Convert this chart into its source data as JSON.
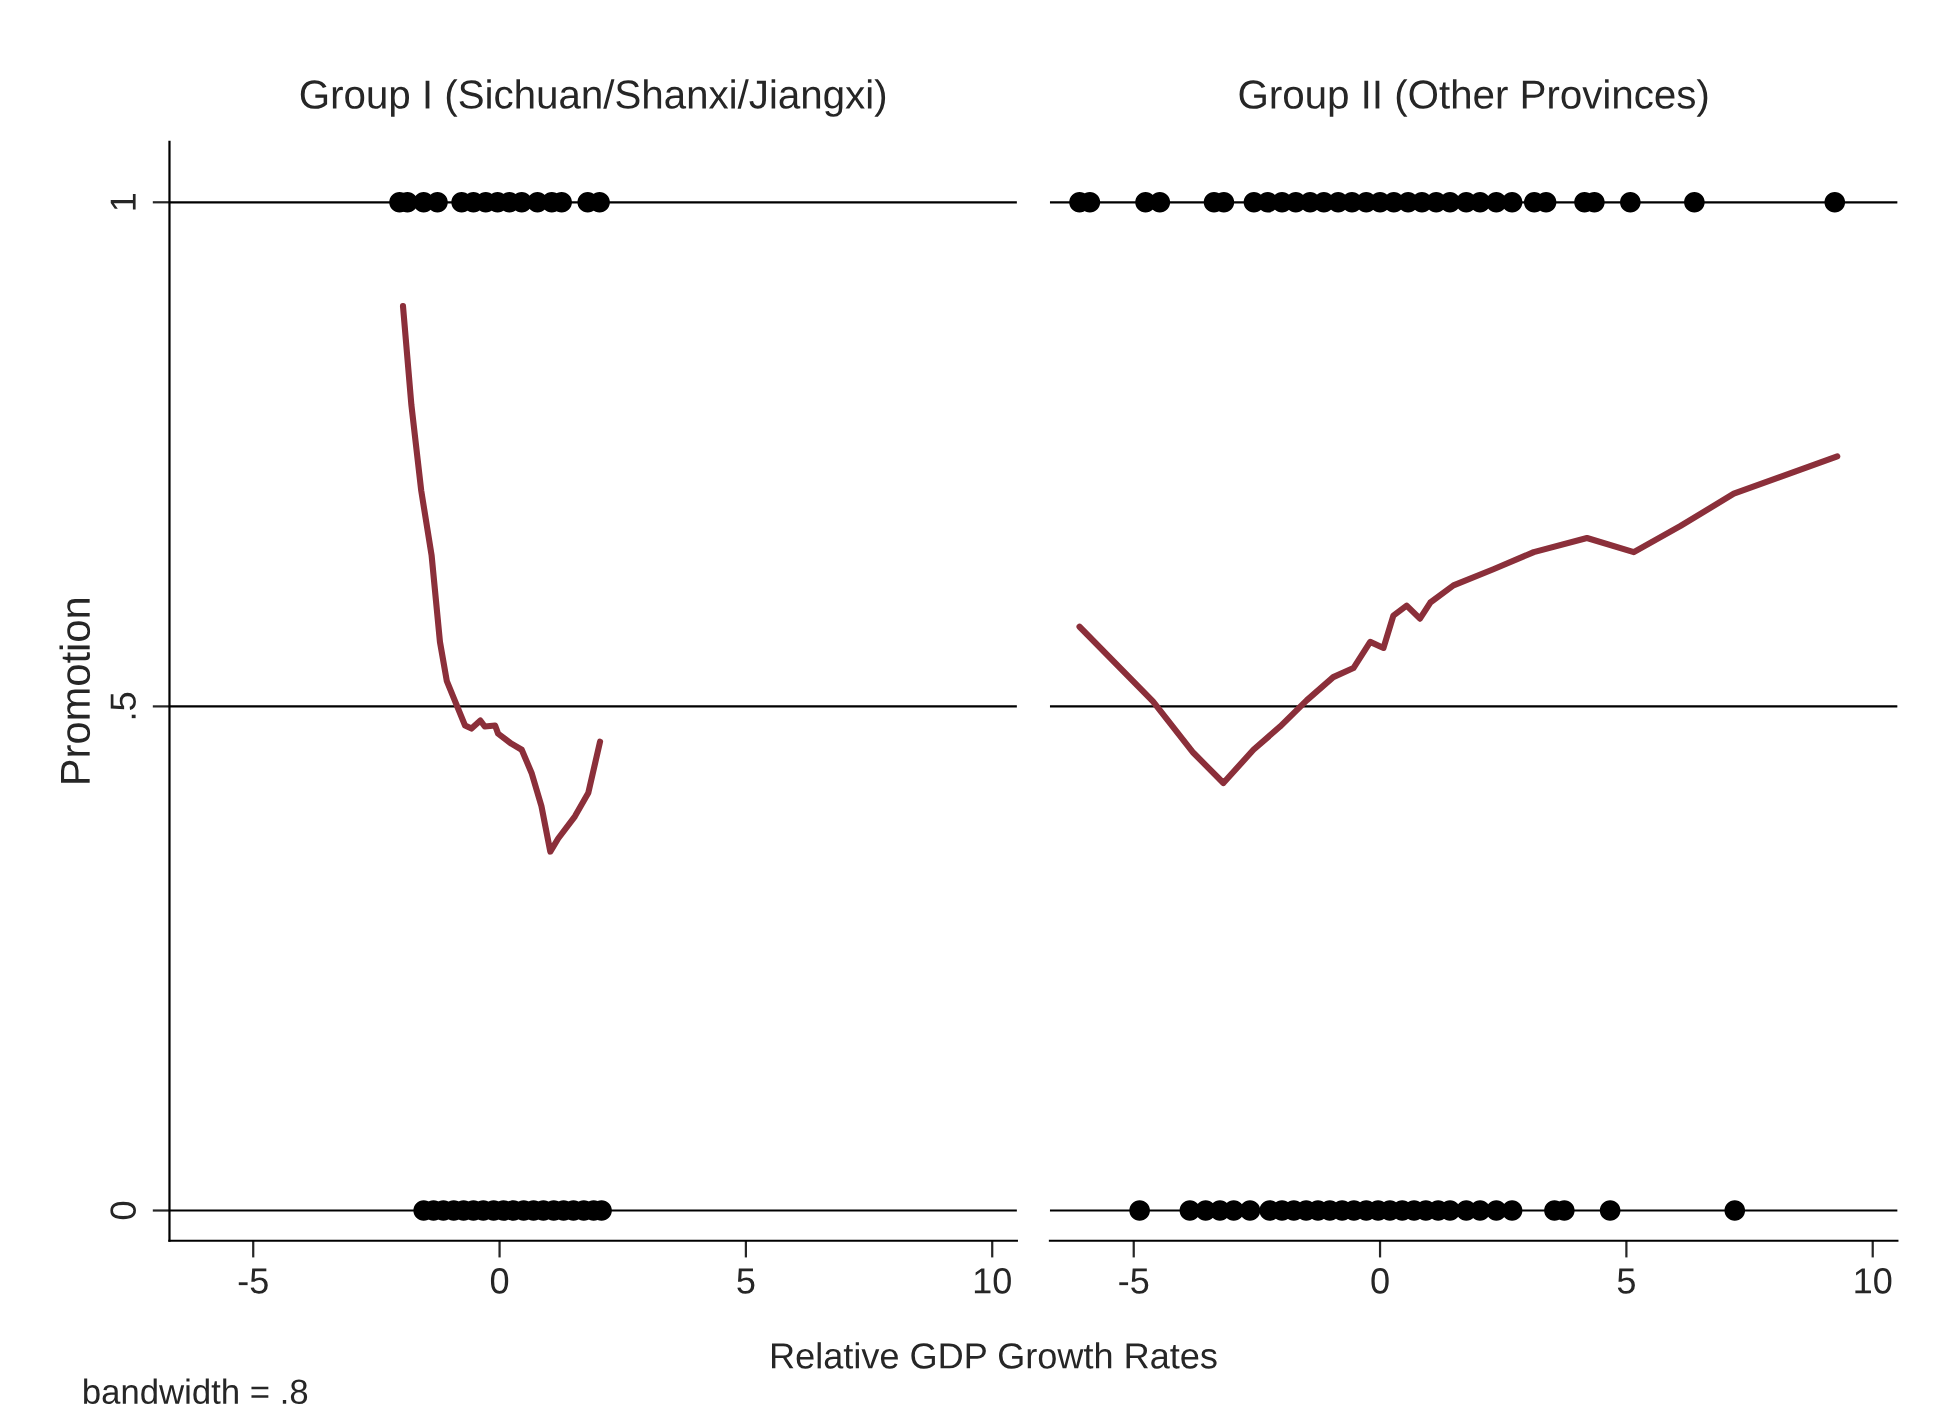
{
  "chart_data": [
    {
      "type": "scatter",
      "title": "Group I (Sichuan/Shanxi/Jiangxi)",
      "ylabel": "Promotion",
      "xlabel": "Relative GDP Growth Rates",
      "annotations": [
        "bandwidth = .8"
      ],
      "xlim": [
        -6.7,
        10.5
      ],
      "xticks": [
        -5,
        0,
        5,
        10
      ],
      "ylim": [
        -0.03,
        1.06
      ],
      "yticks": [
        0,
        {
          "value": 0.5,
          "label": ".5"
        },
        1
      ],
      "grid": "y",
      "series": [
        {
          "marker": "circle",
          "color": "#000000",
          "x": [
            -2.03,
            -1.87,
            -1.54,
            -1.26,
            -0.77,
            -0.53,
            -0.28,
            -0.04,
            0.2,
            0.45,
            0.77,
            1.06,
            1.26,
            1.79,
            2.03
          ],
          "values": [
            1,
            1,
            1,
            1,
            1,
            1,
            1,
            1,
            1,
            1,
            1,
            1,
            1,
            1,
            1
          ]
        },
        {
          "marker": "circle",
          "color": "#000000",
          "x": [
            -1.54,
            -1.34,
            -1.14,
            -0.93,
            -0.73,
            -0.53,
            -0.33,
            -0.12,
            0.08,
            0.28,
            0.49,
            0.69,
            0.89,
            1.1,
            1.3,
            1.5,
            1.71,
            1.91,
            2.07
          ],
          "values": [
            0,
            0,
            0,
            0,
            0,
            0,
            0,
            0,
            0,
            0,
            0,
            0,
            0,
            0,
            0,
            0,
            0,
            0,
            0
          ]
        },
        {
          "type": "line",
          "line_style": "solid",
          "color": "#8b2f3a",
          "x": [
            -1.96,
            -1.79,
            -1.59,
            -1.38,
            -1.21,
            -1.07,
            -0.91,
            -0.7,
            -0.57,
            -0.39,
            -0.3,
            -0.09,
            -0.03,
            0.24,
            0.45,
            0.65,
            0.85,
            1.03,
            1.19,
            1.53,
            1.8,
            2.04
          ],
          "values": [
            0.897,
            0.799,
            0.714,
            0.65,
            0.564,
            0.525,
            0.506,
            0.481,
            0.478,
            0.486,
            0.48,
            0.481,
            0.473,
            0.463,
            0.457,
            0.434,
            0.401,
            0.356,
            0.369,
            0.391,
            0.414,
            0.465
          ]
        }
      ]
    },
    {
      "type": "scatter",
      "title": "Group II (Other Provinces)",
      "xlim": [
        -6.7,
        10.5
      ],
      "xticks": [
        -5,
        0,
        5,
        10
      ],
      "yticks": [
        0,
        0.5,
        1
      ],
      "grid": "y",
      "tick_labels": "x",
      "series": [
        {
          "marker": "circle",
          "color": "#000000",
          "x": [
            -6.1,
            -5.89,
            -4.76,
            -4.47,
            -3.37,
            -3.17,
            -2.56,
            -2.28,
            -1.99,
            -1.71,
            -1.42,
            -1.14,
            -0.85,
            -0.57,
            -0.28,
            0,
            0.28,
            0.57,
            0.85,
            1.14,
            1.42,
            1.75,
            2.03,
            2.36,
            2.68,
            3.13,
            3.37,
            4.15,
            4.35,
            5.08,
            6.38,
            9.23
          ],
          "values": [
            1,
            1,
            1,
            1,
            1,
            1,
            1,
            1,
            1,
            1,
            1,
            1,
            1,
            1,
            1,
            1,
            1,
            1,
            1,
            1,
            1,
            1,
            1,
            1,
            1,
            1,
            1,
            1,
            1,
            1,
            1,
            1
          ]
        },
        {
          "marker": "circle",
          "color": "#000000",
          "x": [
            -4.88,
            -3.86,
            -3.54,
            -3.25,
            -2.97,
            -2.64,
            -2.24,
            -1.99,
            -1.75,
            -1.5,
            -1.26,
            -1.02,
            -0.77,
            -0.53,
            -0.28,
            -0.04,
            0.2,
            0.45,
            0.69,
            0.93,
            1.18,
            1.42,
            1.75,
            2.03,
            2.36,
            2.68,
            3.54,
            3.74,
            4.67,
            7.2
          ],
          "values": [
            0,
            0,
            0,
            0,
            0,
            0,
            0,
            0,
            0,
            0,
            0,
            0,
            0,
            0,
            0,
            0,
            0,
            0,
            0,
            0,
            0,
            0,
            0,
            0,
            0,
            0,
            0,
            0,
            0,
            0
          ]
        },
        {
          "type": "line",
          "line_style": "solid",
          "color": "#8b2f3a",
          "x": [
            -6.1,
            -4.61,
            -3.79,
            -3.18,
            -2.57,
            -2.03,
            -1.49,
            -0.95,
            -0.54,
            -0.2,
            0.07,
            0.27,
            0.54,
            0.81,
            1.02,
            1.49,
            2.3,
            3.12,
            4.2,
            5.15,
            6.1,
            7.18,
            9.28
          ],
          "values": [
            0.579,
            0.505,
            0.454,
            0.424,
            0.457,
            0.48,
            0.506,
            0.529,
            0.538,
            0.564,
            0.558,
            0.59,
            0.6,
            0.587,
            0.603,
            0.62,
            0.636,
            0.653,
            0.667,
            0.653,
            0.679,
            0.711,
            0.748
          ]
        }
      ]
    }
  ]
}
